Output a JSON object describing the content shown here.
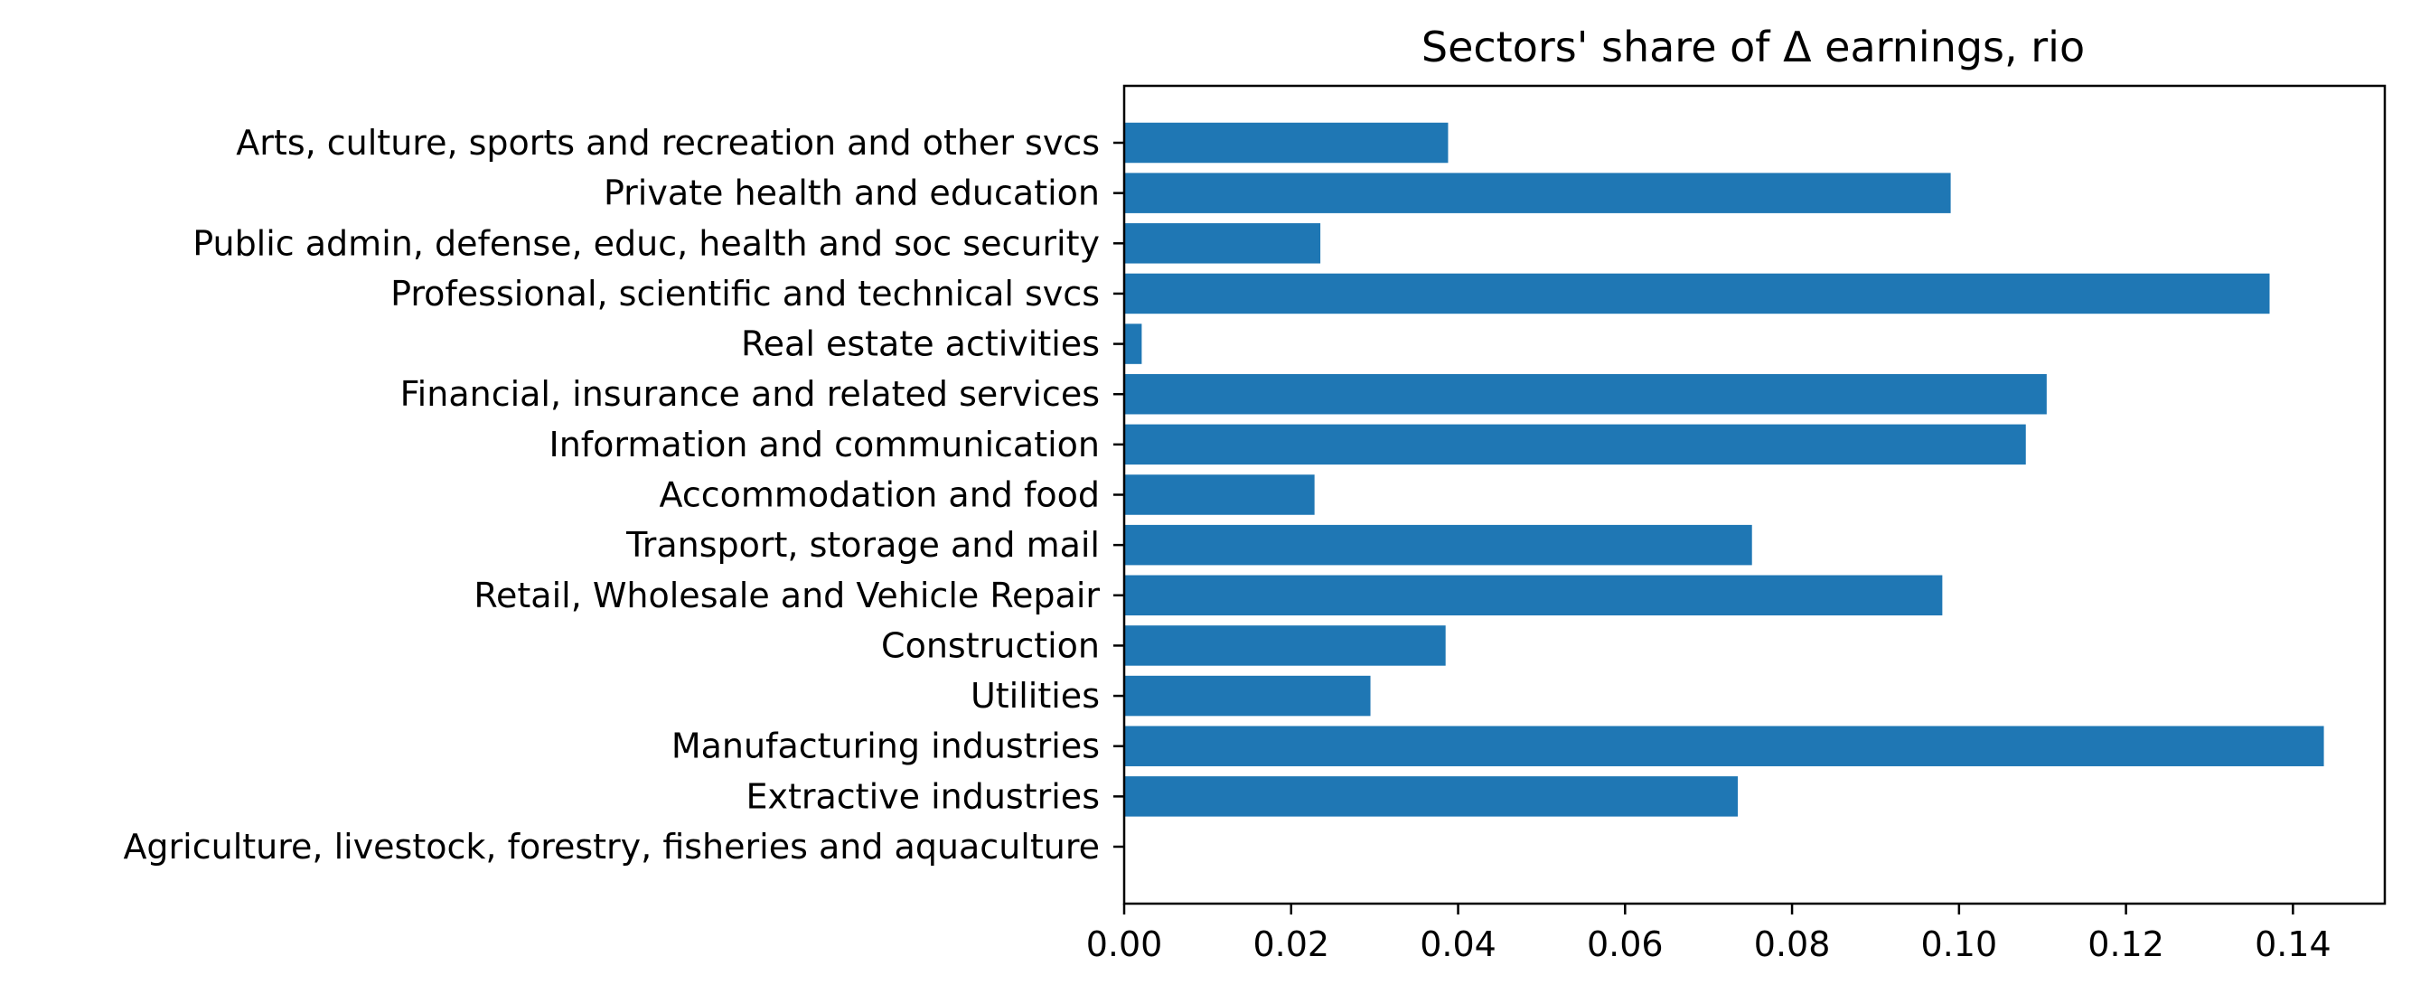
{
  "chart_data": {
    "type": "bar",
    "orientation": "horizontal",
    "title": "Sectors' share of Δ earnings, rio",
    "xlabel": "",
    "ylabel": "",
    "xlim": [
      0.0,
      0.151
    ],
    "xticks": [
      0.0,
      0.02,
      0.04,
      0.06,
      0.08,
      0.1,
      0.12,
      0.14
    ],
    "xtick_labels": [
      "0.00",
      "0.02",
      "0.04",
      "0.06",
      "0.08",
      "0.10",
      "0.12",
      "0.14"
    ],
    "categories": [
      "Agriculture, livestock, forestry, fisheries and aquaculture",
      "Extractive industries",
      "Manufacturing industries",
      "Utilities",
      "Construction",
      "Retail, Wholesale and Vehicle Repair",
      "Transport, storage and mail",
      "Accommodation and food",
      "Information and communication",
      "Financial, insurance and related services",
      "Real estate activities",
      "Professional, scientific and technical svcs",
      "Public admin, defense, educ, health and soc security",
      "Private health and education",
      "Arts, culture, sports and recreation and other svcs"
    ],
    "values": [
      0.0,
      0.0735,
      0.1437,
      0.0295,
      0.0385,
      0.098,
      0.0752,
      0.0228,
      0.108,
      0.1105,
      0.0021,
      0.1372,
      0.0235,
      0.099,
      0.0388
    ],
    "bar_color": "#1f77b4",
    "grid": false,
    "legend": "none"
  }
}
